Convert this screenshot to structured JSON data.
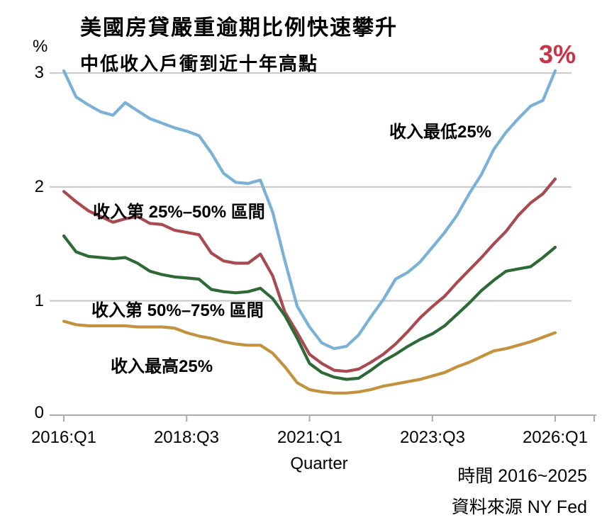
{
  "title": "美國房貸嚴重逾期比例快速攀升",
  "subtitle": "中低收入戶衝到近十年高點",
  "endpoint_annotation": "3%",
  "y_axis": {
    "unit_label": "%",
    "tick_labels": [
      "3",
      "2",
      "1",
      "0"
    ],
    "tick_values": [
      3,
      2,
      1,
      0
    ]
  },
  "x_axis": {
    "label": "Quarter",
    "tick_labels": [
      "2016:Q1",
      "2018:Q3",
      "2021:Q1",
      "2023:Q3",
      "2026:Q1"
    ]
  },
  "footer": {
    "time_range": "時間 2016~2025",
    "source": "資料來源 NY Fed"
  },
  "colors": {
    "accent_red": "#c83446",
    "gridline": "#c7c7c7",
    "axis": "#ababab",
    "text": "#000000",
    "series_low25": "#79b1d7",
    "series_25_50": "#a84a50",
    "series_50_75": "#2d6a36",
    "series_top25": "#c3923e"
  },
  "chart_data": {
    "type": "line",
    "title": "美國房貸嚴重逾期比例快速攀升",
    "subtitle": "中低收入戶衝到近十年高點",
    "xlabel": "Quarter",
    "ylabel": "%",
    "ylim": [
      0,
      3.1
    ],
    "grid": "horizontal",
    "legend_position": "inline-annotations",
    "x_tick_labels": [
      "2016:Q1",
      "2018:Q3",
      "2021:Q1",
      "2023:Q3",
      "2026:Q1"
    ],
    "x": [
      "2016:Q1",
      "2016:Q2",
      "2016:Q3",
      "2016:Q4",
      "2017:Q1",
      "2017:Q2",
      "2017:Q3",
      "2017:Q4",
      "2018:Q1",
      "2018:Q2",
      "2018:Q3",
      "2018:Q4",
      "2019:Q1",
      "2019:Q2",
      "2019:Q3",
      "2019:Q4",
      "2020:Q1",
      "2020:Q2",
      "2020:Q3",
      "2020:Q4",
      "2021:Q1",
      "2021:Q2",
      "2021:Q3",
      "2021:Q4",
      "2022:Q1",
      "2022:Q2",
      "2022:Q3",
      "2022:Q4",
      "2023:Q1",
      "2023:Q2",
      "2023:Q3",
      "2023:Q4",
      "2024:Q1",
      "2024:Q2",
      "2024:Q3",
      "2024:Q4",
      "2025:Q1",
      "2025:Q2",
      "2025:Q3",
      "2025:Q4",
      "2026:Q1"
    ],
    "series": [
      {
        "name": "收入最低25%",
        "color": "#79b1d7",
        "values": [
          3.02,
          2.79,
          2.72,
          2.66,
          2.63,
          2.74,
          2.67,
          2.6,
          2.56,
          2.52,
          2.49,
          2.45,
          2.3,
          2.12,
          2.04,
          2.03,
          2.06,
          1.78,
          1.35,
          0.95,
          0.77,
          0.63,
          0.58,
          0.6,
          0.7,
          0.86,
          1.01,
          1.19,
          1.25,
          1.34,
          1.47,
          1.6,
          1.75,
          1.94,
          2.11,
          2.33,
          2.48,
          2.6,
          2.71,
          2.76,
          3.02
        ]
      },
      {
        "name": "收入第 25%–50% 區間",
        "color": "#a84a50",
        "values": [
          1.96,
          1.87,
          1.79,
          1.74,
          1.69,
          1.72,
          1.74,
          1.68,
          1.67,
          1.62,
          1.6,
          1.58,
          1.42,
          1.35,
          1.33,
          1.33,
          1.41,
          1.22,
          0.9,
          0.72,
          0.53,
          0.45,
          0.39,
          0.38,
          0.4,
          0.46,
          0.53,
          0.62,
          0.73,
          0.85,
          0.95,
          1.04,
          1.16,
          1.27,
          1.38,
          1.5,
          1.61,
          1.75,
          1.86,
          1.94,
          2.07
        ]
      },
      {
        "name": "收入第 50%–75% 區間",
        "color": "#2d6a36",
        "values": [
          1.57,
          1.43,
          1.39,
          1.38,
          1.37,
          1.38,
          1.33,
          1.26,
          1.23,
          1.21,
          1.2,
          1.19,
          1.1,
          1.08,
          1.07,
          1.08,
          1.11,
          1.02,
          0.87,
          0.67,
          0.45,
          0.37,
          0.33,
          0.31,
          0.32,
          0.39,
          0.47,
          0.53,
          0.6,
          0.66,
          0.71,
          0.78,
          0.88,
          0.98,
          1.09,
          1.18,
          1.26,
          1.28,
          1.3,
          1.38,
          1.47
        ]
      },
      {
        "name": "收入最高25%",
        "color": "#c3923e",
        "values": [
          0.82,
          0.79,
          0.78,
          0.78,
          0.78,
          0.78,
          0.77,
          0.77,
          0.77,
          0.76,
          0.72,
          0.69,
          0.67,
          0.64,
          0.62,
          0.61,
          0.61,
          0.54,
          0.42,
          0.28,
          0.22,
          0.2,
          0.19,
          0.19,
          0.2,
          0.22,
          0.25,
          0.27,
          0.29,
          0.31,
          0.34,
          0.37,
          0.42,
          0.46,
          0.51,
          0.56,
          0.58,
          0.61,
          0.64,
          0.68,
          0.72
        ]
      }
    ]
  }
}
